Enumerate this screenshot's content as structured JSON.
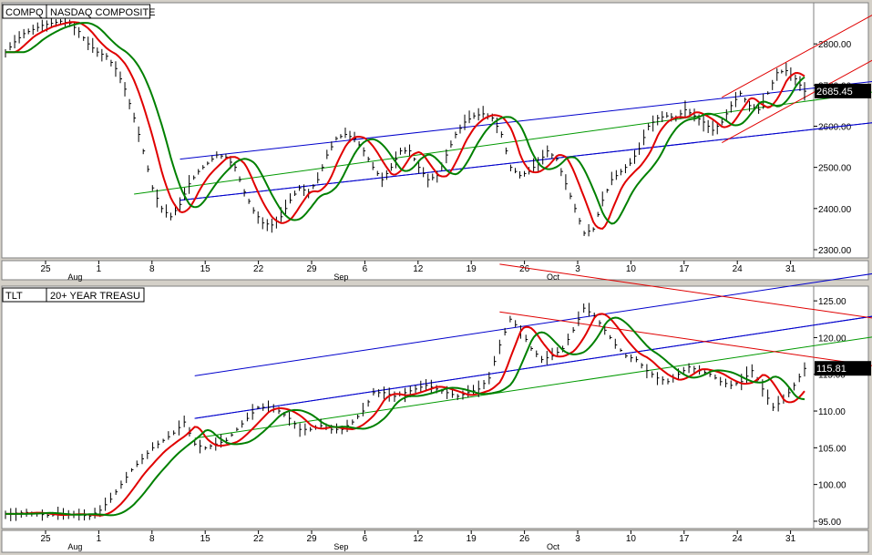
{
  "chart_data": [
    {
      "type": "line",
      "name": "NASDAQ price panel",
      "symbol": "COMPQ",
      "title": "NASDAQ COMPOSITE",
      "last_value": "2685.45",
      "ylim": [
        2280,
        2900
      ],
      "y_ticks": [
        "2800.00",
        "2700.00",
        "2600.00",
        "2500.00",
        "2400.00",
        "2300.00"
      ],
      "y_tick_values": [
        2800,
        2700,
        2600,
        2500,
        2400,
        2300
      ],
      "x_ticks": [
        "25",
        "1",
        "8",
        "15",
        "22",
        "29",
        "6",
        "12",
        "19",
        "26",
        "3",
        "10",
        "17",
        "24",
        "31"
      ],
      "month_labels": [
        "Aug",
        "Sep",
        "Oct"
      ],
      "ohlc_close_path": [
        [
          0,
          2780
        ],
        [
          2,
          2805
        ],
        [
          4,
          2825
        ],
        [
          6,
          2835
        ],
        [
          8,
          2845
        ],
        [
          10,
          2850
        ],
        [
          12,
          2855
        ],
        [
          14,
          2850
        ],
        [
          16,
          2830
        ],
        [
          18,
          2800
        ],
        [
          20,
          2780
        ],
        [
          22,
          2770
        ],
        [
          24,
          2740
        ],
        [
          26,
          2690
        ],
        [
          28,
          2620
        ],
        [
          30,
          2540
        ],
        [
          32,
          2450
        ],
        [
          34,
          2400
        ],
        [
          36,
          2380
        ],
        [
          38,
          2410
        ],
        [
          40,
          2460
        ],
        [
          42,
          2490
        ],
        [
          44,
          2510
        ],
        [
          46,
          2530
        ],
        [
          48,
          2525
        ],
        [
          50,
          2500
        ],
        [
          52,
          2440
        ],
        [
          54,
          2395
        ],
        [
          56,
          2365
        ],
        [
          58,
          2360
        ],
        [
          60,
          2380
        ],
        [
          62,
          2420
        ],
        [
          64,
          2450
        ],
        [
          66,
          2440
        ],
        [
          68,
          2470
        ],
        [
          70,
          2530
        ],
        [
          72,
          2570
        ],
        [
          74,
          2580
        ],
        [
          76,
          2570
        ],
        [
          78,
          2540
        ],
        [
          80,
          2500
        ],
        [
          82,
          2470
        ],
        [
          84,
          2500
        ],
        [
          86,
          2540
        ],
        [
          88,
          2540
        ],
        [
          90,
          2500
        ],
        [
          92,
          2470
        ],
        [
          94,
          2480
        ],
        [
          96,
          2530
        ],
        [
          98,
          2580
        ],
        [
          100,
          2610
        ],
        [
          102,
          2625
        ],
        [
          104,
          2630
        ],
        [
          106,
          2620
        ],
        [
          108,
          2580
        ],
        [
          110,
          2500
        ],
        [
          112,
          2480
        ],
        [
          114,
          2490
        ],
        [
          116,
          2510
        ],
        [
          118,
          2540
        ],
        [
          120,
          2520
        ],
        [
          122,
          2460
        ],
        [
          124,
          2400
        ],
        [
          126,
          2340
        ],
        [
          128,
          2350
        ],
        [
          130,
          2420
        ],
        [
          132,
          2470
        ],
        [
          134,
          2490
        ],
        [
          136,
          2510
        ],
        [
          138,
          2545
        ],
        [
          140,
          2600
        ],
        [
          142,
          2620
        ],
        [
          144,
          2625
        ],
        [
          146,
          2620
        ],
        [
          148,
          2640
        ],
        [
          150,
          2625
        ],
        [
          152,
          2610
        ],
        [
          154,
          2590
        ],
        [
          156,
          2610
        ],
        [
          158,
          2650
        ],
        [
          160,
          2680
        ],
        [
          162,
          2650
        ],
        [
          164,
          2640
        ],
        [
          166,
          2680
        ],
        [
          168,
          2730
        ],
        [
          170,
          2735
        ],
        [
          172,
          2715
        ],
        [
          174,
          2685
        ]
      ],
      "x_range": [
        0,
        174
      ],
      "regression_channel_blue": {
        "start": [
          38,
          2420
        ],
        "end": [
          174,
          2590
        ],
        "offset": 100
      },
      "regression_mid_green": {
        "start": [
          28,
          2435
        ],
        "end": [
          174,
          2660
        ]
      },
      "short_channel_red": {
        "start": [
          156,
          2560
        ],
        "end": [
          174,
          2670
        ],
        "offset": 110
      }
    },
    {
      "type": "line",
      "name": "Treasury price panel",
      "symbol": "TLT",
      "title": "20+ YEAR TREASU",
      "last_value": "115.81",
      "ylim": [
        94,
        127
      ],
      "y_ticks": [
        "125.00",
        "120.00",
        "115.00",
        "110.00",
        "105.00",
        "100.00",
        "95.00"
      ],
      "y_tick_values": [
        125,
        120,
        115,
        110,
        105,
        100,
        95
      ],
      "x_ticks": [
        "25",
        "1",
        "8",
        "15",
        "22",
        "29",
        "6",
        "12",
        "19",
        "26",
        "3",
        "10",
        "17",
        "24",
        "31"
      ],
      "month_labels": [
        "Aug",
        "Sep",
        "Oct"
      ],
      "ohlc_close_path": [
        [
          0,
          96.0
        ],
        [
          4,
          96.2
        ],
        [
          8,
          95.8
        ],
        [
          12,
          96.0
        ],
        [
          16,
          95.7
        ],
        [
          18,
          96.5
        ],
        [
          20,
          98.0
        ],
        [
          22,
          100.0
        ],
        [
          24,
          102.0
        ],
        [
          26,
          103.5
        ],
        [
          28,
          105.0
        ],
        [
          30,
          106.0
        ],
        [
          32,
          107.0
        ],
        [
          34,
          108.5
        ],
        [
          36,
          105.5
        ],
        [
          38,
          105.0
        ],
        [
          40,
          105.5
        ],
        [
          42,
          106.0
        ],
        [
          44,
          107.5
        ],
        [
          46,
          109.0
        ],
        [
          48,
          110.5
        ],
        [
          50,
          110.5
        ],
        [
          52,
          110.0
        ],
        [
          54,
          109.0
        ],
        [
          56,
          107.5
        ],
        [
          58,
          107.5
        ],
        [
          60,
          108.0
        ],
        [
          62,
          107.5
        ],
        [
          64,
          107.5
        ],
        [
          66,
          108.5
        ],
        [
          68,
          110.0
        ],
        [
          70,
          112.5
        ],
        [
          72,
          112.5
        ],
        [
          74,
          112.0
        ],
        [
          76,
          112.5
        ],
        [
          78,
          113.0
        ],
        [
          80,
          113.5
        ],
        [
          82,
          113.0
        ],
        [
          84,
          112.5
        ],
        [
          86,
          112.0
        ],
        [
          88,
          112.5
        ],
        [
          90,
          113.0
        ],
        [
          92,
          114.5
        ],
        [
          94,
          119.0
        ],
        [
          96,
          122.5
        ],
        [
          98,
          121.0
        ],
        [
          100,
          118.5
        ],
        [
          102,
          117.0
        ],
        [
          104,
          117.5
        ],
        [
          106,
          118.5
        ],
        [
          108,
          121.0
        ],
        [
          110,
          124.0
        ],
        [
          112,
          123.0
        ],
        [
          114,
          121.0
        ],
        [
          116,
          119.0
        ],
        [
          118,
          117.5
        ],
        [
          120,
          117.0
        ],
        [
          122,
          115.5
        ],
        [
          124,
          114.5
        ],
        [
          126,
          114.0
        ],
        [
          128,
          115.0
        ],
        [
          130,
          116.0
        ],
        [
          132,
          115.5
        ],
        [
          134,
          115.0
        ],
        [
          136,
          114.0
        ],
        [
          138,
          113.5
        ],
        [
          140,
          114.0
        ],
        [
          142,
          115.5
        ],
        [
          144,
          113.0
        ],
        [
          146,
          110.5
        ],
        [
          148,
          111.5
        ],
        [
          150,
          113.5
        ],
        [
          152,
          115.8
        ]
      ],
      "x_range": [
        0,
        152
      ],
      "regression_channel_blue": {
        "start": [
          36,
          109.0
        ],
        "end": [
          152,
          121.5
        ],
        "offset": 5.8
      },
      "regression_mid_green": {
        "start": [
          36,
          106.3
        ],
        "end": [
          152,
          118.7
        ]
      },
      "short_channel_red": {
        "start": [
          94,
          123.5
        ],
        "end": [
          152,
          117.5
        ],
        "offset": 6.5
      }
    }
  ],
  "colors": {
    "panel_bg": "#ffffff",
    "frame_bg": "#d4d0c8",
    "bars": "#000000",
    "fast_ma": "#e00000",
    "slow_ma": "#008000",
    "blue_channel": "#0000cc",
    "green_mid": "#009900",
    "red_channel": "#e00000",
    "last_value_bg": "#000000",
    "last_value_fg": "#ffffff"
  }
}
